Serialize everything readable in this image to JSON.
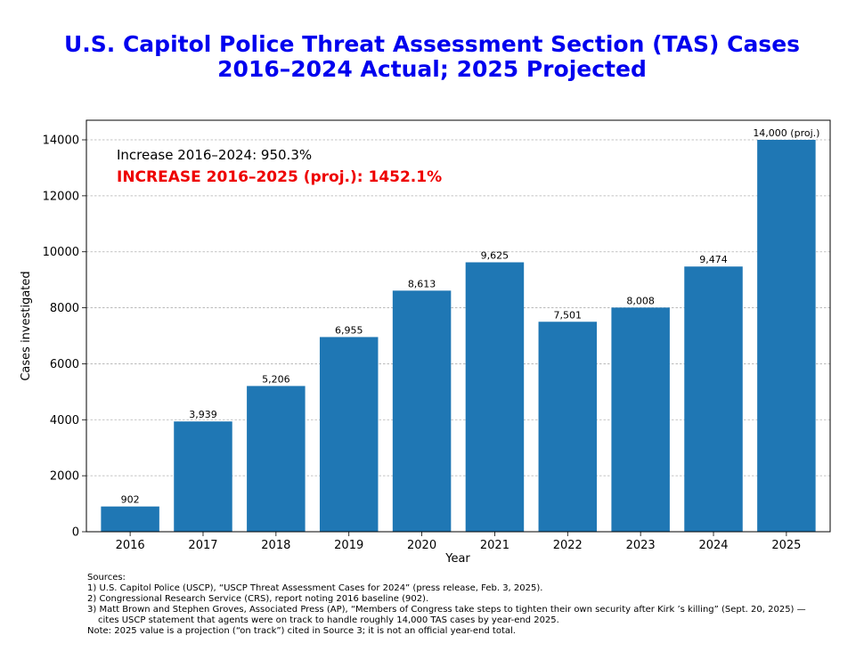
{
  "title_line1": "U.S. Capitol Police Threat Assessment Section (TAS) Cases",
  "title_line2": "2016–2024 Actual; 2025 Projected",
  "colors": {
    "bar": "#1f77b4",
    "title": "#0000ee",
    "highlight": "#ee0000"
  },
  "chart_data": {
    "type": "bar",
    "categories": [
      "2016",
      "2017",
      "2018",
      "2019",
      "2020",
      "2021",
      "2022",
      "2023",
      "2024",
      "2025"
    ],
    "values": [
      902,
      3939,
      5206,
      6955,
      8613,
      9625,
      7501,
      8008,
      9474,
      14000
    ],
    "data_labels": [
      "902",
      "3,939",
      "5,206",
      "6,955",
      "8,613",
      "9,625",
      "7,501",
      "8,008",
      "9,474",
      "14,000 (proj.)"
    ],
    "xlabel": "Year",
    "ylabel": "Cases investigated",
    "ylim": [
      0,
      14700
    ],
    "yticks": [
      0,
      2000,
      4000,
      6000,
      8000,
      10000,
      12000,
      14000
    ],
    "grid": "horizontal dashed",
    "annotations": [
      "Increase 2016–2024: 950.3%",
      "INCREASE 2016–2025 (proj.): 1452.1%"
    ]
  },
  "sources": {
    "heading": "Sources:",
    "lines": [
      "1) U.S. Capitol Police (USCP), “USCP Threat Assessment Cases for 2024” (press release, Feb. 3, 2025).",
      "2) Congressional Research Service (CRS), report noting 2016 baseline (902).",
      "3) Matt Brown and Stephen Groves, Associated Press (AP), “Members of Congress take steps to tighten their own security after Kirk ’s killing” (Sept. 20, 2025) —",
      "cites USCP statement that agents were on track to handle roughly 14,000 TAS cases by year-end 2025."
    ],
    "note": "Note: 2025 value is a projection (“on track”) cited in Source 3; it is not an official year-end total."
  }
}
